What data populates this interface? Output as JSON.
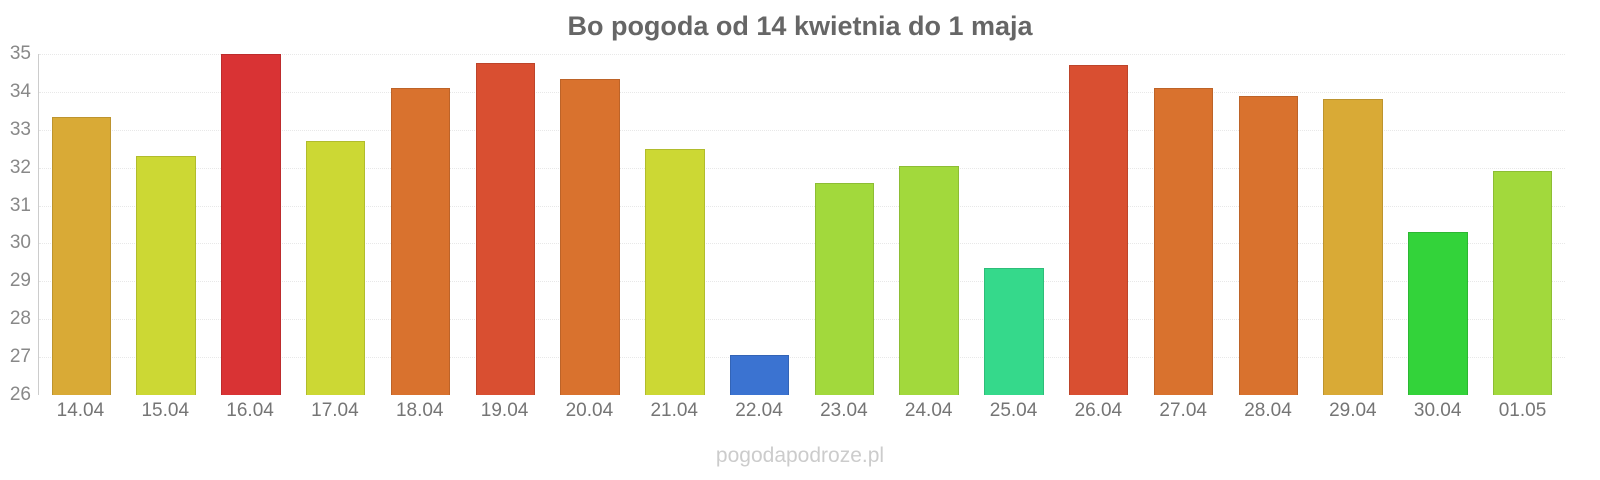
{
  "title": "Bo pogoda od 14 kwietnia do 1 maja",
  "watermark": "pogodapodroze.pl",
  "styles": {
    "title_color": "#666666",
    "y_label_color": "#888888",
    "x_label_color": "#757575",
    "watermark_color": "#cccccc",
    "gridline_color": "#e8e8e8",
    "axis_line_color": "#cccccc",
    "page_bg": "#ffffff"
  },
  "chart_data": {
    "type": "bar",
    "title": "Bo pogoda od 14 kwietnia do 1 maja",
    "categories": [
      "14.04",
      "15.04",
      "16.04",
      "17.04",
      "18.04",
      "19.04",
      "20.04",
      "21.04",
      "22.04",
      "23.04",
      "24.04",
      "25.04",
      "26.04",
      "27.04",
      "28.04",
      "29.04",
      "30.04",
      "01.05"
    ],
    "values": [
      33.35,
      32.3,
      35.0,
      32.7,
      34.1,
      34.75,
      34.35,
      32.5,
      27.05,
      31.6,
      32.05,
      29.35,
      34.7,
      34.1,
      33.9,
      33.8,
      30.3,
      31.9
    ],
    "bar_colors": [
      "#d9aa36",
      "#ccd834",
      "#d93334",
      "#ccd834",
      "#d9722e",
      "#d94f31",
      "#d9722e",
      "#ccd834",
      "#3b73d1",
      "#a2d93c",
      "#a2d93c",
      "#35d98b",
      "#d94f31",
      "#d9722e",
      "#d9722e",
      "#d9aa36",
      "#33d33a",
      "#a2d93c"
    ],
    "xlabel": "",
    "ylabel": "",
    "ylim": [
      26,
      35
    ],
    "yticks": [
      26,
      27,
      28,
      29,
      30,
      31,
      32,
      33,
      34,
      35
    ],
    "grid": true,
    "legend": false,
    "legend_position": "none"
  }
}
